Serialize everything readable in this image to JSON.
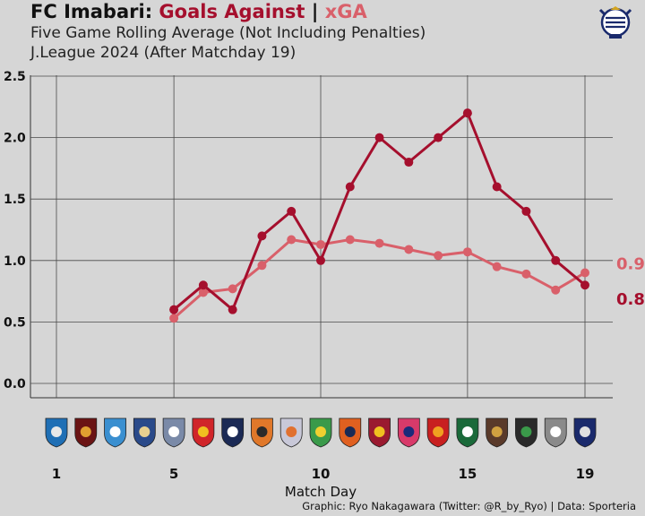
{
  "header": {
    "title_team": "FC Imabari:",
    "title_ga": "Goals Against",
    "title_sep": "|",
    "title_xga": "xGA",
    "subtitle1": "Five Game Rolling Average (Not Including Penalties)",
    "subtitle2": "J.League 2024 (After Matchday 19)"
  },
  "footer": {
    "credit": "Graphic: Ryo Nakagawara (Twitter: @R_by_Ryo) | Data: Sporteria"
  },
  "colors": {
    "goals_against": "#a50f2d",
    "xga": "#d9606a",
    "background": "#d6d6d6",
    "grid": "#4a4a4a"
  },
  "icons": {
    "team_logo": "fc-imabari-crest-icon",
    "opponent_logos": "opponent-club-crest-icon"
  },
  "chart_data": {
    "type": "line",
    "title": "FC Imabari: Goals Against | xGA",
    "xlabel": "Match Day",
    "ylabel": "",
    "xlim": [
      1,
      19
    ],
    "ylim": [
      0,
      2.5
    ],
    "x_ticks": [
      1,
      5,
      10,
      15,
      19
    ],
    "y_ticks": [
      "0.0",
      "0.5",
      "1.0",
      "1.5",
      "2.0",
      "2.5"
    ],
    "grid": true,
    "legend": "none",
    "series": [
      {
        "name": "Goals Against",
        "color": "#a50f2d",
        "end_label": "0.8",
        "x": [
          5,
          6,
          7,
          8,
          9,
          10,
          11,
          12,
          13,
          14,
          15,
          16,
          17,
          18,
          19
        ],
        "values": [
          0.6,
          0.8,
          0.6,
          1.2,
          1.4,
          1.0,
          1.6,
          2.0,
          1.8,
          2.0,
          2.2,
          1.6,
          1.4,
          1.0,
          0.8
        ]
      },
      {
        "name": "xGA",
        "color": "#d9606a",
        "end_label": "0.9",
        "x": [
          5,
          6,
          7,
          8,
          9,
          10,
          11,
          12,
          13,
          14,
          15,
          16,
          17,
          18,
          19
        ],
        "values": [
          0.53,
          0.74,
          0.77,
          0.96,
          1.17,
          1.13,
          1.17,
          1.14,
          1.09,
          1.04,
          1.07,
          0.95,
          0.89,
          0.76,
          0.9
        ]
      }
    ]
  }
}
